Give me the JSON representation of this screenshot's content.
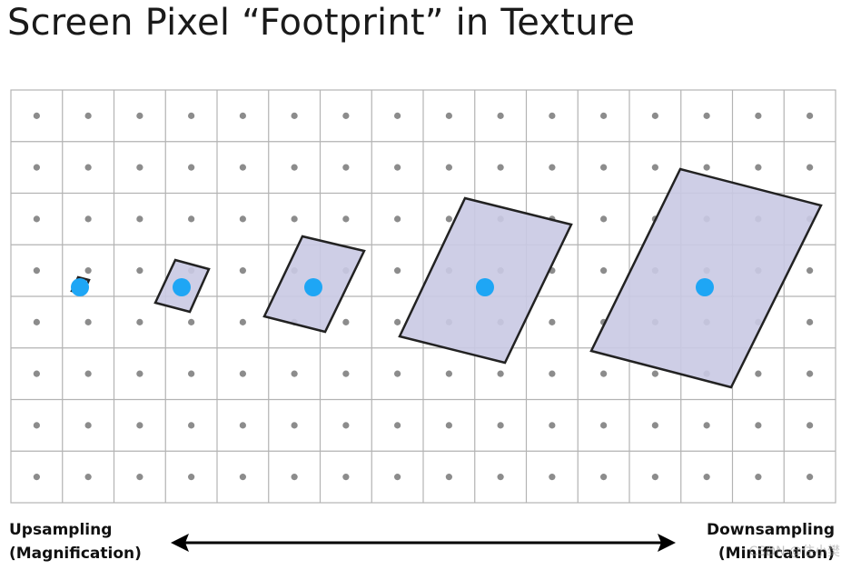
{
  "title": "Screen Pixel “Footprint” in Texture",
  "labels": {
    "left_line1": "Upsampling",
    "left_line2": "(Magnification)",
    "right_line1": "Downsampling",
    "right_line2": "(Minification)"
  },
  "watermark": "CSDN @住小樊",
  "grid": {
    "columns": 16,
    "rows": 8
  },
  "colors": {
    "grid_line": "#b3b3b3",
    "texel_dot": "#8c8c8c",
    "footprint_fill": "#c9c9e3",
    "footprint_stroke": "#222222",
    "center_dot": "#1ea6f5",
    "arrow": "#000000"
  }
}
